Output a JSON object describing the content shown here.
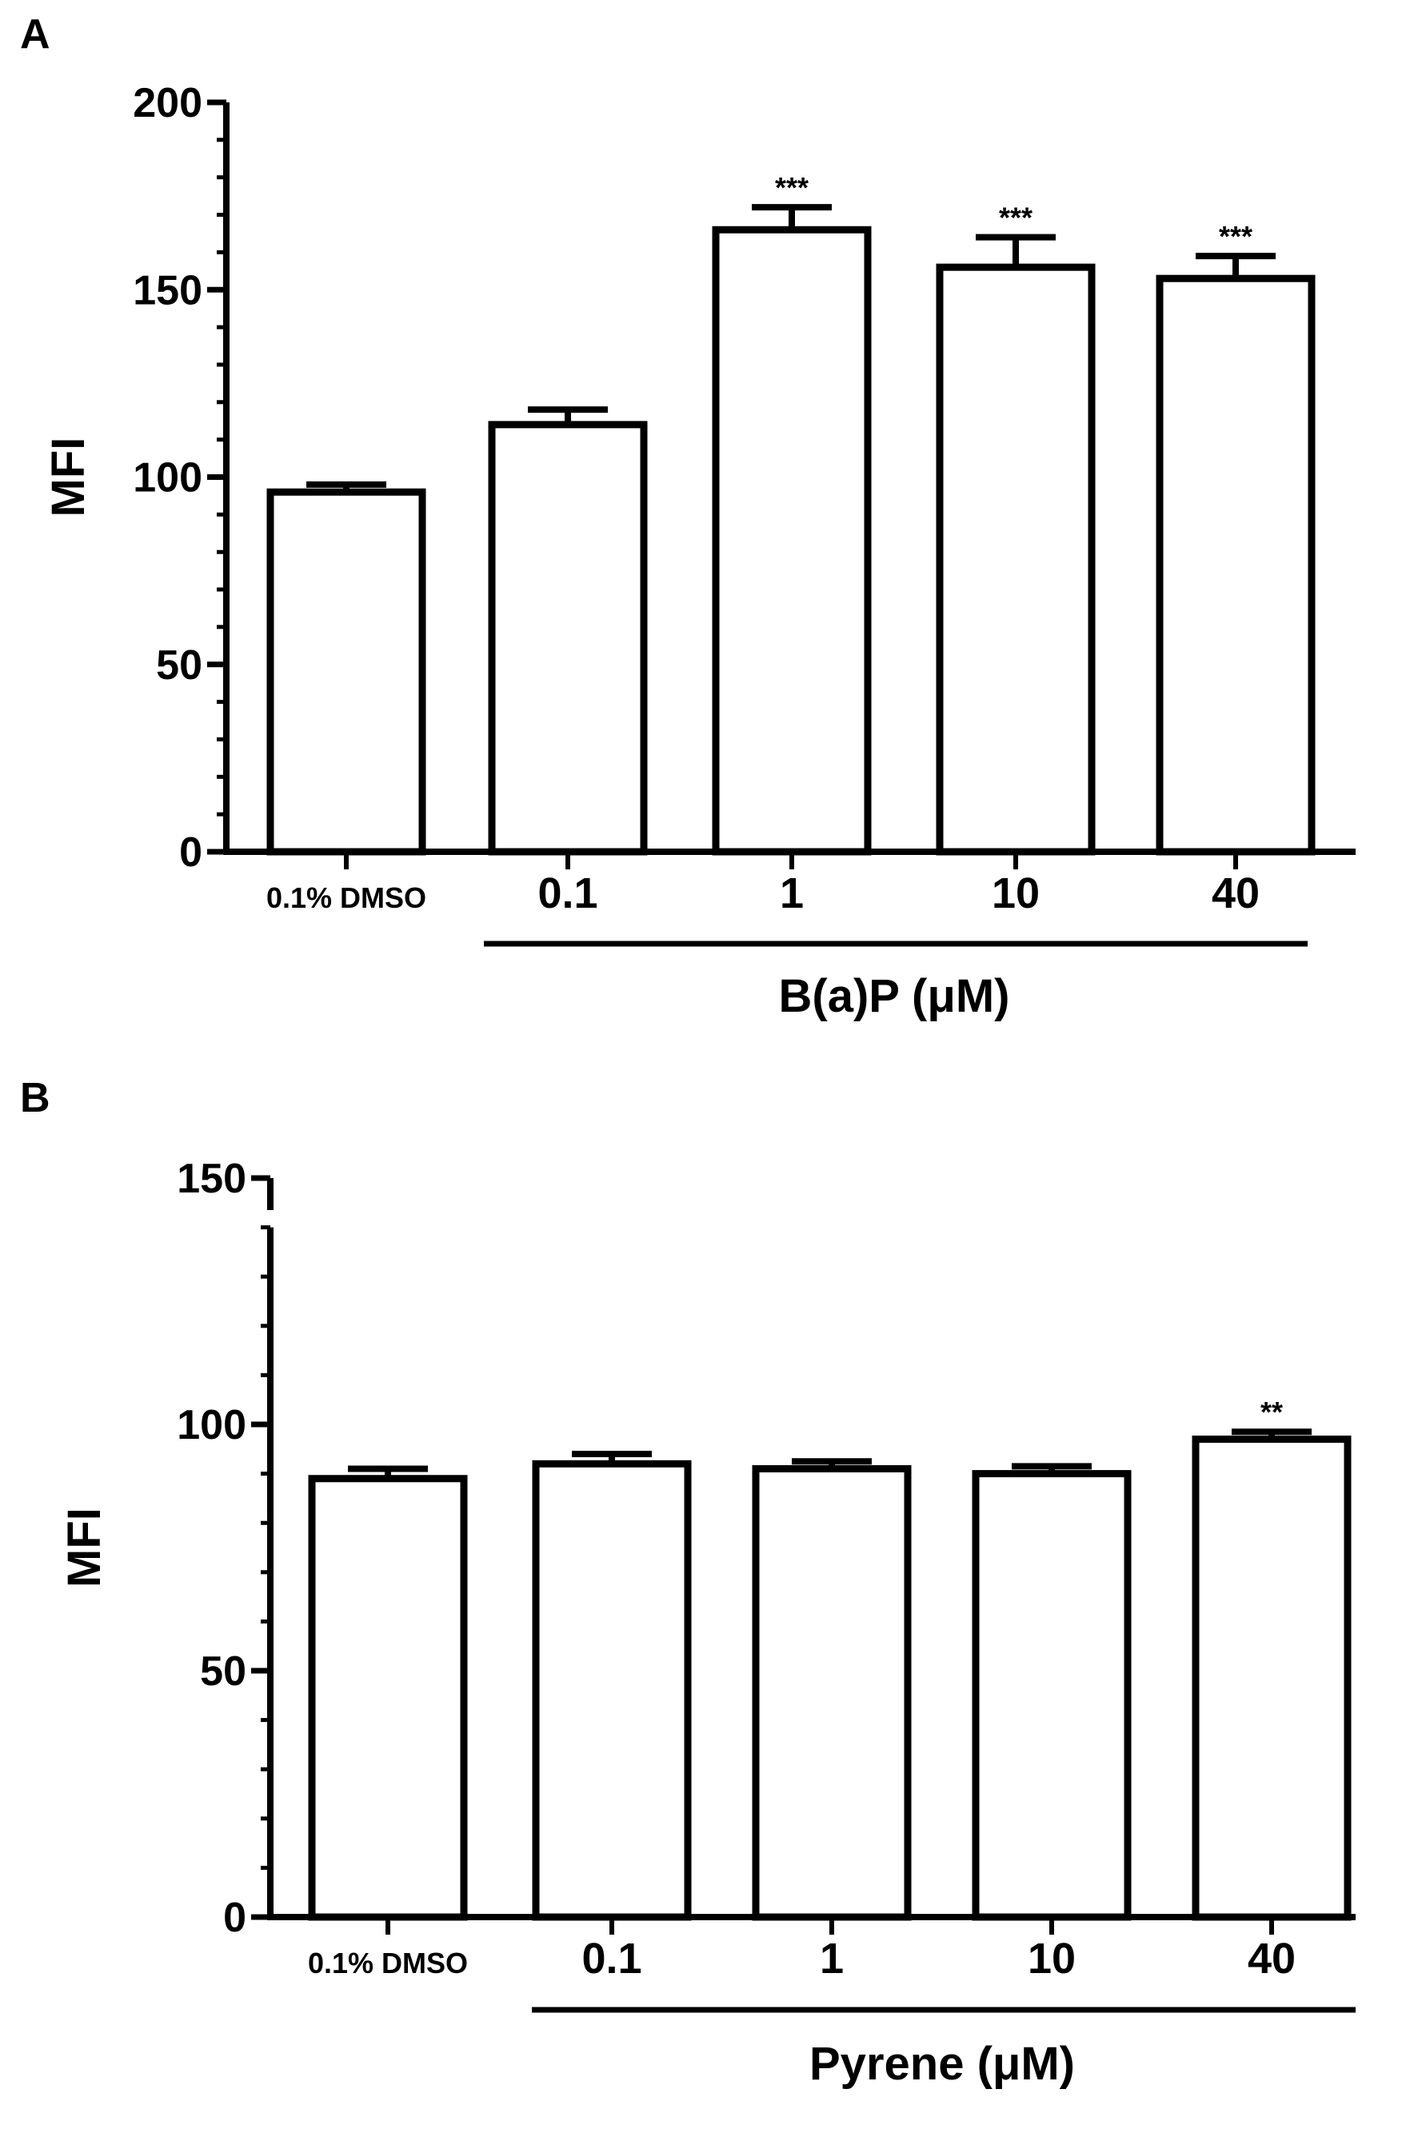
{
  "chart_data": [
    {
      "panel_label": "A",
      "type": "bar",
      "ylabel": "MFI",
      "categories": [
        "0.1% DMSO",
        "0.1",
        "1",
        "10",
        "40"
      ],
      "values": [
        96,
        114,
        166,
        156,
        153
      ],
      "errors": [
        2,
        4,
        6,
        8,
        6
      ],
      "significance": [
        "",
        "",
        "***",
        "***",
        "***"
      ],
      "ylim": [
        0,
        200
      ],
      "yticks": [
        0,
        50,
        100,
        150,
        200
      ],
      "group_label": "B(a)P (μM)",
      "axis_break": false
    },
    {
      "panel_label": "B",
      "type": "bar",
      "ylabel": "MFI",
      "categories": [
        "0.1% DMSO",
        "0.1",
        "1",
        "10",
        "40"
      ],
      "values": [
        89,
        92,
        91,
        90,
        97
      ],
      "errors": [
        2,
        2,
        1.5,
        1.5,
        1.5
      ],
      "significance": [
        "",
        "",
        "",
        "",
        "**"
      ],
      "ylim": [
        0,
        150
      ],
      "yticks": [
        0,
        50,
        100,
        150
      ],
      "group_label": "Pyrene (μM)",
      "axis_break": true,
      "break_value": 140
    }
  ]
}
